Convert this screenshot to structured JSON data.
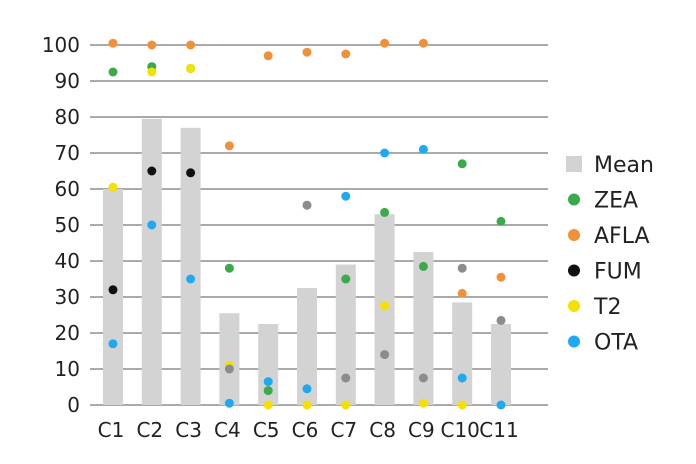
{
  "chart_data": {
    "type": "bar",
    "title": "",
    "xlabel": "",
    "ylabel": "",
    "ylim": [
      0,
      100
    ],
    "yticks": [
      0,
      10,
      20,
      30,
      40,
      50,
      60,
      70,
      80,
      90,
      100
    ],
    "grid": "horizontal",
    "legend_position": "right",
    "categories": [
      "C1",
      "C2",
      "C3",
      "C4",
      "C5",
      "C6",
      "C7",
      "C8",
      "C9",
      "C10",
      "C11"
    ],
    "bar_series": {
      "name": "Mean",
      "color": "#d3d3d3",
      "values": [
        60,
        79.5,
        77,
        25.5,
        22.5,
        32.5,
        39,
        53,
        42.5,
        28.5,
        22.5
      ]
    },
    "point_series": [
      {
        "name": "ZEA",
        "color": "#3aaa4a",
        "values": [
          92.5,
          94,
          93.5,
          38,
          4,
          null,
          35,
          53.5,
          38.5,
          67,
          51
        ]
      },
      {
        "name": "AFLA",
        "color": "#f0913a",
        "values": [
          100.5,
          100,
          100,
          72,
          97,
          98,
          97.5,
          100.5,
          100.5,
          31,
          35.5
        ]
      },
      {
        "name": "FUM",
        "color": "#111111",
        "values": [
          32,
          65,
          64.5,
          null,
          null,
          null,
          null,
          null,
          null,
          null,
          null
        ]
      },
      {
        "name": "T2",
        "color": "#f5e000",
        "values": [
          60.5,
          92.5,
          93.5,
          11,
          0,
          0,
          0,
          27.5,
          0.5,
          0,
          null
        ]
      },
      {
        "name": "OTA",
        "color": "#1eaaf0",
        "values": [
          17,
          50,
          35,
          0.5,
          6.5,
          4.5,
          58,
          70,
          71,
          7.5,
          0
        ]
      },
      {
        "name": "",
        "color": "#8c8c8c",
        "values": [
          null,
          null,
          null,
          10,
          null,
          55.5,
          7.5,
          14,
          7.5,
          38,
          23.5
        ],
        "in_legend": false
      }
    ],
    "legend": [
      {
        "label": "Mean",
        "marker": "square",
        "color": "#d3d3d3"
      },
      {
        "label": "ZEA",
        "marker": "circle",
        "color": "#3aaa4a"
      },
      {
        "label": "AFLA",
        "marker": "circle",
        "color": "#f0913a"
      },
      {
        "label": "FUM",
        "marker": "circle",
        "color": "#111111"
      },
      {
        "label": "T2",
        "marker": "circle",
        "color": "#f5e000"
      },
      {
        "label": "OTA",
        "marker": "circle",
        "color": "#1eaaf0"
      }
    ]
  }
}
